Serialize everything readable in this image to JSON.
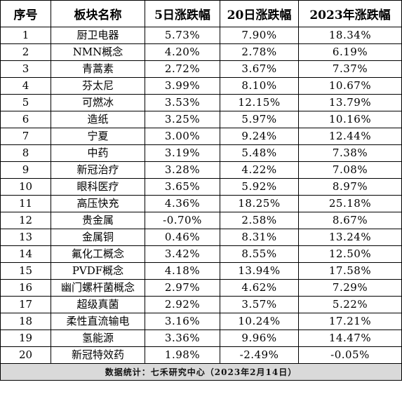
{
  "table": {
    "headers": [
      "序号",
      "板块名称",
      "5日涨跌幅",
      "20日涨跌幅",
      "2023年涨跌幅"
    ],
    "rows": [
      [
        "1",
        "厨卫电器",
        "5.73%",
        "7.90%",
        "18.34%"
      ],
      [
        "2",
        "NMN概念",
        "4.20%",
        "2.78%",
        "6.19%"
      ],
      [
        "3",
        "青蒿素",
        "2.72%",
        "3.67%",
        "7.37%"
      ],
      [
        "4",
        "芬太尼",
        "3.99%",
        "8.10%",
        "10.67%"
      ],
      [
        "5",
        "可燃冰",
        "3.53%",
        "12.15%",
        "13.79%"
      ],
      [
        "6",
        "造纸",
        "3.25%",
        "5.97%",
        "10.16%"
      ],
      [
        "7",
        "宁夏",
        "3.00%",
        "9.24%",
        "12.44%"
      ],
      [
        "8",
        "中药",
        "3.19%",
        "5.48%",
        "7.38%"
      ],
      [
        "9",
        "新冠治疗",
        "3.28%",
        "4.22%",
        "7.08%"
      ],
      [
        "10",
        "眼科医疗",
        "3.65%",
        "5.92%",
        "8.97%"
      ],
      [
        "11",
        "高压快充",
        "4.36%",
        "18.25%",
        "25.18%"
      ],
      [
        "12",
        "贵金属",
        "-0.70%",
        "2.58%",
        "8.67%"
      ],
      [
        "13",
        "金属铜",
        "0.46%",
        "8.31%",
        "13.24%"
      ],
      [
        "14",
        "氟化工概念",
        "3.42%",
        "8.55%",
        "12.50%"
      ],
      [
        "15",
        "PVDF概念",
        "4.18%",
        "13.94%",
        "17.58%"
      ],
      [
        "16",
        "幽门螺杆菌概念",
        "2.97%",
        "4.62%",
        "7.29%"
      ],
      [
        "17",
        "超级真菌",
        "2.92%",
        "3.57%",
        "5.22%"
      ],
      [
        "18",
        "柔性直流输电",
        "3.16%",
        "10.24%",
        "17.21%"
      ],
      [
        "19",
        "氢能源",
        "3.36%",
        "9.96%",
        "14.47%"
      ],
      [
        "20",
        "新冠特效药",
        "1.98%",
        "-2.49%",
        "-0.05%"
      ]
    ],
    "footer": "数据统计：七禾研究中心（2023年2月14日）"
  },
  "colors": {
    "border": "#000000",
    "footer_bg": "#d9d9d9",
    "text": "#000000"
  }
}
